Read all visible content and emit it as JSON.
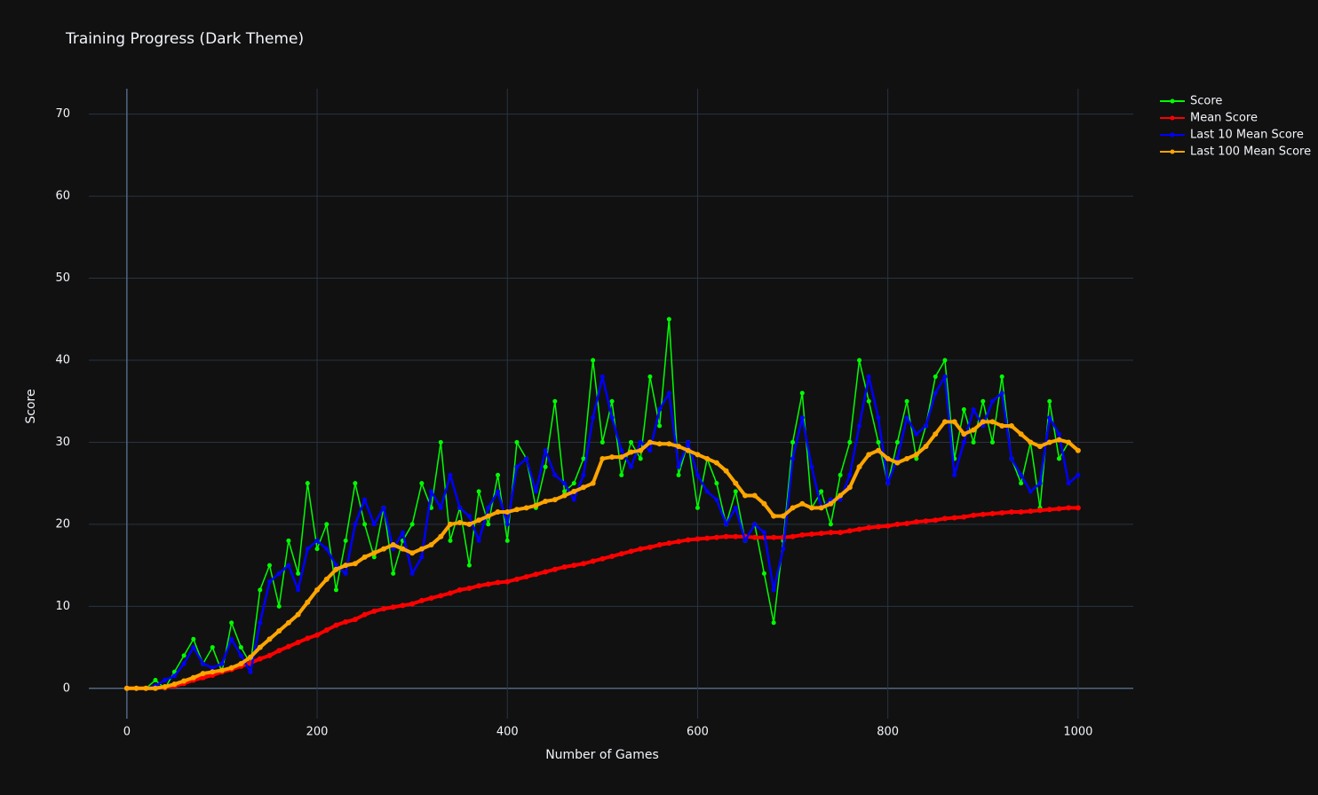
{
  "chart_data": {
    "type": "line",
    "title": "Training Progress (Dark Theme)",
    "x_label": "Number of Games",
    "y_label": "Score",
    "x": [
      0,
      10,
      20,
      30,
      40,
      50,
      60,
      70,
      80,
      90,
      100,
      110,
      120,
      130,
      140,
      150,
      160,
      170,
      180,
      190,
      200,
      210,
      220,
      230,
      240,
      250,
      260,
      270,
      280,
      290,
      300,
      310,
      320,
      330,
      340,
      350,
      360,
      370,
      380,
      390,
      400,
      410,
      420,
      430,
      440,
      450,
      460,
      470,
      480,
      490,
      500,
      510,
      520,
      530,
      540,
      550,
      560,
      570,
      580,
      590,
      600,
      610,
      620,
      630,
      640,
      650,
      660,
      670,
      680,
      690,
      700,
      710,
      720,
      730,
      740,
      750,
      760,
      770,
      780,
      790,
      800,
      810,
      820,
      830,
      840,
      850,
      860,
      870,
      880,
      890,
      900,
      910,
      920,
      930,
      940,
      950,
      960,
      970,
      980,
      990,
      1000
    ],
    "series": [
      {
        "name": "Score",
        "color": "#00ff00",
        "values": [
          0,
          0,
          0,
          1,
          0,
          2,
          4,
          6,
          3,
          5,
          2,
          8,
          5,
          3,
          12,
          15,
          10,
          18,
          14,
          25,
          17,
          20,
          12,
          18,
          25,
          20,
          16,
          22,
          14,
          18,
          20,
          25,
          22,
          30,
          18,
          22,
          15,
          24,
          20,
          26,
          18,
          30,
          28,
          22,
          27,
          35,
          24,
          25,
          28,
          40,
          30,
          35,
          26,
          30,
          28,
          38,
          32,
          45,
          26,
          30,
          22,
          28,
          25,
          20,
          24,
          18,
          20,
          14,
          8,
          18,
          30,
          36,
          22,
          24,
          20,
          26,
          30,
          40,
          35,
          30,
          25,
          30,
          35,
          28,
          32,
          38,
          40,
          28,
          34,
          30,
          35,
          30,
          38,
          28,
          25,
          30,
          22,
          35,
          28,
          30,
          29
        ]
      },
      {
        "name": "Mean Score",
        "color": "#ff0000",
        "values": [
          0,
          0,
          0,
          0.05,
          0.1,
          0.3,
          0.6,
          1,
          1.3,
          1.6,
          2,
          2.3,
          2.7,
          3.1,
          3.6,
          4,
          4.6,
          5.1,
          5.6,
          6.1,
          6.5,
          7.1,
          7.7,
          8.1,
          8.4,
          9,
          9.4,
          9.7,
          9.9,
          10.1,
          10.3,
          10.7,
          11,
          11.3,
          11.6,
          12,
          12.2,
          12.5,
          12.7,
          12.9,
          13,
          13.3,
          13.6,
          13.9,
          14.2,
          14.5,
          14.8,
          15,
          15.2,
          15.5,
          15.8,
          16.1,
          16.4,
          16.7,
          17,
          17.2,
          17.5,
          17.7,
          17.9,
          18.1,
          18.2,
          18.3,
          18.4,
          18.5,
          18.5,
          18.5,
          18.4,
          18.4,
          18.4,
          18.4,
          18.5,
          18.7,
          18.8,
          18.9,
          19,
          19,
          19.2,
          19.4,
          19.6,
          19.7,
          19.8,
          20,
          20.1,
          20.3,
          20.4,
          20.5,
          20.7,
          20.8,
          20.9,
          21.1,
          21.2,
          21.3,
          21.4,
          21.5,
          21.5,
          21.6,
          21.7,
          21.8,
          21.9,
          22,
          22
        ]
      },
      {
        "name": "Last 10 Mean Score",
        "color": "#0000ff",
        "values": [
          0,
          0,
          0,
          0.3,
          1,
          1.5,
          3,
          5,
          3,
          2.5,
          3,
          6,
          4,
          2,
          8,
          13,
          14,
          15,
          12,
          17,
          18,
          17,
          15,
          14,
          20,
          23,
          20,
          22,
          17,
          19,
          14,
          16,
          24,
          22,
          26,
          22,
          21,
          18,
          22,
          24,
          20,
          27,
          28,
          24,
          29,
          26,
          25,
          23,
          26,
          33,
          38,
          33,
          29,
          27,
          30,
          29,
          34,
          36,
          27,
          30,
          26,
          24,
          23,
          20,
          22,
          18,
          20,
          19,
          12,
          17,
          28,
          33,
          27,
          22,
          23,
          23,
          26,
          32,
          38,
          33,
          25,
          28,
          33,
          31,
          32,
          36,
          38,
          26,
          30,
          34,
          32,
          35,
          36,
          28,
          26,
          24,
          25,
          33,
          31,
          25,
          26
        ]
      },
      {
        "name": "Last 100 Mean Score",
        "color": "#ffa500",
        "values": [
          0,
          0,
          0,
          0,
          0.2,
          0.5,
          0.9,
          1.3,
          1.8,
          2,
          2.2,
          2.5,
          3,
          3.8,
          5,
          6,
          7,
          8,
          9,
          10.5,
          12,
          13.3,
          14.5,
          15,
          15.2,
          16,
          16.5,
          17,
          17.5,
          17,
          16.5,
          17,
          17.5,
          18.5,
          20,
          20.2,
          20,
          20.5,
          21,
          21.5,
          21.5,
          21.8,
          22,
          22.3,
          22.8,
          23,
          23.5,
          24,
          24.5,
          25,
          28,
          28.2,
          28.2,
          28.8,
          29,
          30,
          29.8,
          29.8,
          29.5,
          29,
          28.5,
          28,
          27.5,
          26.5,
          25,
          23.5,
          23.5,
          22.5,
          21,
          21,
          22,
          22.5,
          22,
          22,
          22.5,
          23.5,
          24.5,
          27,
          28.5,
          29,
          28,
          27.5,
          28,
          28.5,
          29.5,
          31,
          32.5,
          32.5,
          31,
          31.5,
          32.5,
          32.5,
          32,
          32,
          31,
          30,
          29.5,
          30,
          30.3,
          30,
          29
        ]
      }
    ],
    "xlim": [
      -40,
      1058
    ],
    "ylim": [
      -3.7,
      73.1
    ],
    "xticks": [
      0,
      200,
      400,
      600,
      800,
      1000
    ],
    "yticks": [
      0,
      10,
      20,
      30,
      40,
      50,
      60,
      70
    ],
    "grid": true,
    "legend": "top-right"
  }
}
